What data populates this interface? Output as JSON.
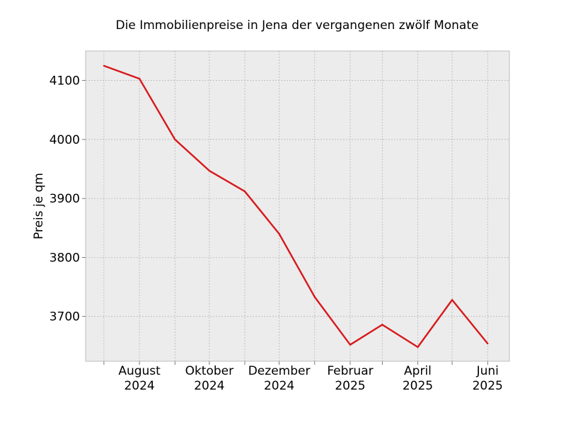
{
  "chart_data": {
    "type": "line",
    "title": "Die Immobilienpreise in Jena der vergangenen zwölf Monate",
    "xlabel": "",
    "ylabel": "Preis je qm",
    "x": [
      "2024-07",
      "2024-08",
      "2024-09",
      "2024-10",
      "2024-11",
      "2024-12",
      "2025-01",
      "2025-02",
      "2025-03",
      "2025-04",
      "2025-05",
      "2025-06"
    ],
    "series": [
      {
        "values": [
          4125,
          4103,
          4000,
          3947,
          3912,
          3840,
          3733,
          3652,
          3686,
          3648,
          3728,
          3654
        ]
      }
    ],
    "ylim": [
      3624,
      4150
    ],
    "xlim": [
      "2024-06-15",
      "2025-06-20"
    ],
    "yticks": [
      3700,
      3800,
      3900,
      4000,
      4100
    ],
    "xticks": [
      {
        "date": "2024-08",
        "line1": "August",
        "line2": "2024"
      },
      {
        "date": "2024-10",
        "line1": "Oktober",
        "line2": "2024"
      },
      {
        "date": "2024-12",
        "line1": "Dezember",
        "line2": "2024"
      },
      {
        "date": "2025-02",
        "line1": "Februar",
        "line2": "2025"
      },
      {
        "date": "2025-04",
        "line1": "April",
        "line2": "2025"
      },
      {
        "date": "2025-06",
        "line1": "Juni",
        "line2": "2025"
      }
    ],
    "grid": true,
    "colors": {
      "line": "#d7191c",
      "plot_background": "#ececec",
      "grid": "#b0b0b0",
      "frame": "#bcbcbc"
    }
  }
}
